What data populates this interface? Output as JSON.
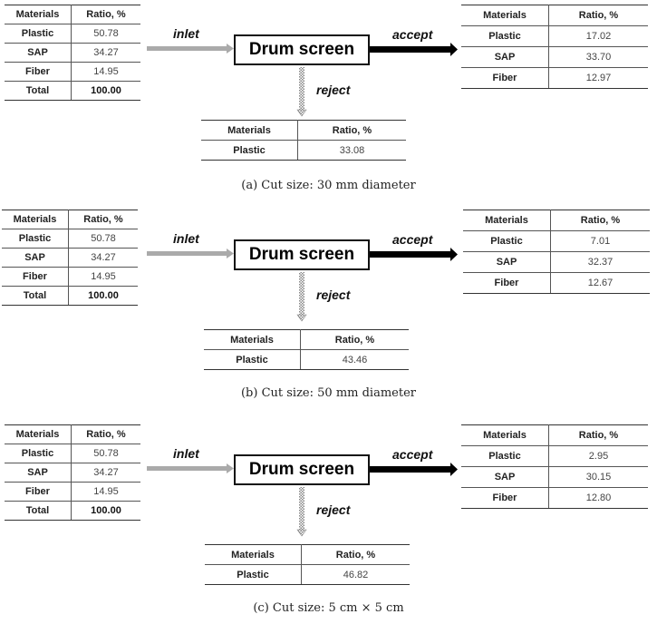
{
  "panels": [
    {
      "caption": "(a) Cut size: 30 mm diameter",
      "process": "Drum screen",
      "labels": {
        "inlet": "inlet",
        "accept": "accept",
        "reject": "reject"
      },
      "inlet": {
        "headers": [
          "Materials",
          "Ratio, %"
        ],
        "rows": [
          [
            "Plastic",
            "50.78"
          ],
          [
            "SAP",
            "34.27"
          ],
          [
            "Fiber",
            "14.95"
          ],
          [
            "Total",
            "100.00"
          ]
        ]
      },
      "accept": {
        "headers": [
          "Materials",
          "Ratio, %"
        ],
        "rows": [
          [
            "Plastic",
            "17.02"
          ],
          [
            "SAP",
            "33.70"
          ],
          [
            "Fiber",
            "12.97"
          ]
        ]
      },
      "reject": {
        "headers": [
          "Materials",
          "Ratio, %"
        ],
        "rows": [
          [
            "Plastic",
            "33.08"
          ]
        ]
      }
    },
    {
      "caption": "(b) Cut size: 50 mm diameter",
      "process": "Drum screen",
      "labels": {
        "inlet": "inlet",
        "accept": "accept",
        "reject": "reject"
      },
      "inlet": {
        "headers": [
          "Materials",
          "Ratio, %"
        ],
        "rows": [
          [
            "Plastic",
            "50.78"
          ],
          [
            "SAP",
            "34.27"
          ],
          [
            "Fiber",
            "14.95"
          ],
          [
            "Total",
            "100.00"
          ]
        ]
      },
      "accept": {
        "headers": [
          "Materials",
          "Ratio, %"
        ],
        "rows": [
          [
            "Plastic",
            "7.01"
          ],
          [
            "SAP",
            "32.37"
          ],
          [
            "Fiber",
            "12.67"
          ]
        ]
      },
      "reject": {
        "headers": [
          "Materials",
          "Ratio, %"
        ],
        "rows": [
          [
            "Plastic",
            "43.46"
          ]
        ]
      }
    },
    {
      "caption": "(c) Cut size: 5 cm × 5 cm",
      "process": "Drum screen",
      "labels": {
        "inlet": "inlet",
        "accept": "accept",
        "reject": "reject"
      },
      "inlet": {
        "headers": [
          "Materials",
          "Ratio, %"
        ],
        "rows": [
          [
            "Plastic",
            "50.78"
          ],
          [
            "SAP",
            "34.27"
          ],
          [
            "Fiber",
            "14.95"
          ],
          [
            "Total",
            "100.00"
          ]
        ]
      },
      "accept": {
        "headers": [
          "Materials",
          "Ratio, %"
        ],
        "rows": [
          [
            "Plastic",
            "2.95"
          ],
          [
            "SAP",
            "30.15"
          ],
          [
            "Fiber",
            "12.80"
          ]
        ]
      },
      "reject": {
        "headers": [
          "Materials",
          "Ratio, %"
        ],
        "rows": [
          [
            "Plastic",
            "46.82"
          ]
        ]
      }
    }
  ],
  "colors": {
    "inlet_arrow": "#aaaaaa",
    "accept_arrow": "#000000",
    "reject_arrow": "#888888"
  }
}
